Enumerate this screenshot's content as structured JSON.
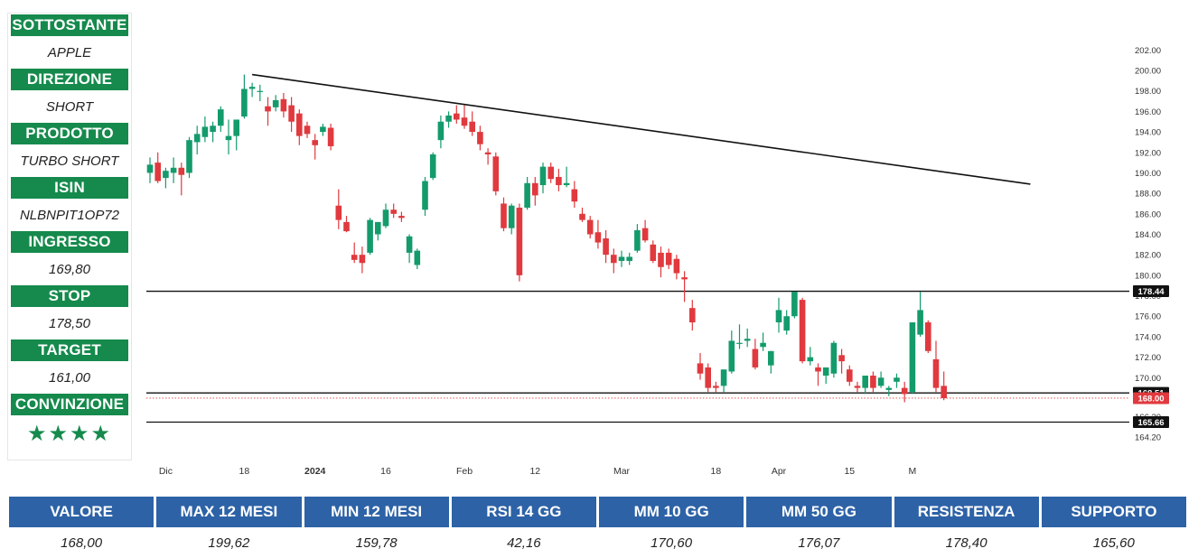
{
  "panel": {
    "rows": [
      {
        "label": "SOTTOSTANTE",
        "value": "APPLE"
      },
      {
        "label": "DIREZIONE",
        "value": "SHORT"
      },
      {
        "label": "PRODOTTO",
        "value": "TURBO SHORT"
      },
      {
        "label": "ISIN",
        "value": "NLBNPIT1OP72"
      },
      {
        "label": "INGRESSO",
        "value": "169,80"
      },
      {
        "label": "STOP",
        "value": "178,50"
      },
      {
        "label": "TARGET",
        "value": "161,00"
      },
      {
        "label": "CONVINZIONE",
        "value": "★★★★"
      }
    ],
    "convinzione_stars": 4
  },
  "stats": {
    "headers": [
      "VALORE",
      "MAX 12 MESI",
      "MIN 12 MESI",
      "RSI 14 GG",
      "MM 10 GG",
      "MM 50 GG",
      "RESISTENZA",
      "SUPPORTO"
    ],
    "values": [
      "168,00",
      "199,62",
      "159,78",
      "42,16",
      "170,60",
      "176,07",
      "178,40",
      "165,60"
    ]
  },
  "colors": {
    "green_header": "#158a4c",
    "blue_header": "#2d62a6",
    "candle_up": "#149b6b",
    "candle_down": "#e0393e"
  },
  "chart_data": {
    "type": "candlestick",
    "ylim": [
      163.5,
      203.0
    ],
    "y_ticks": [
      "164.20",
      "166.20",
      "168.20",
      "170.00",
      "172.00",
      "174.00",
      "176.00",
      "178.00",
      "180.00",
      "182.00",
      "184.00",
      "186.00",
      "188.00",
      "190.00",
      "192.00",
      "194.00",
      "196.00",
      "198.00",
      "200.00",
      "202.00"
    ],
    "y_tick_values": [
      164.2,
      166.2,
      168.2,
      170.0,
      172.0,
      174.0,
      176.0,
      178.0,
      180.0,
      182.0,
      184.0,
      186.0,
      188.0,
      190.0,
      192.0,
      194.0,
      196.0,
      198.0,
      200.0,
      202.0
    ],
    "x_labels": [
      {
        "label": "Dic",
        "index": 2,
        "bold": false
      },
      {
        "label": "18",
        "index": 12,
        "bold": false
      },
      {
        "label": "2024",
        "index": 21,
        "bold": true
      },
      {
        "label": "16",
        "index": 30,
        "bold": false
      },
      {
        "label": "Feb",
        "index": 40,
        "bold": false
      },
      {
        "label": "12",
        "index": 49,
        "bold": false
      },
      {
        "label": "Mar",
        "index": 60,
        "bold": false
      },
      {
        "label": "18",
        "index": 72,
        "bold": false
      },
      {
        "label": "Apr",
        "index": 80,
        "bold": false
      },
      {
        "label": "15",
        "index": 89,
        "bold": false
      },
      {
        "label": "M",
        "index": 97,
        "bold": false
      }
    ],
    "candles": [
      {
        "o": 190.0,
        "h": 191.5,
        "l": 189.0,
        "c": 190.8
      },
      {
        "o": 191.0,
        "h": 192.0,
        "l": 189.0,
        "c": 189.2
      },
      {
        "o": 189.5,
        "h": 190.5,
        "l": 188.5,
        "c": 190.2
      },
      {
        "o": 190.0,
        "h": 191.5,
        "l": 189.0,
        "c": 190.5
      },
      {
        "o": 190.5,
        "h": 191.0,
        "l": 187.8,
        "c": 189.8
      },
      {
        "o": 190.0,
        "h": 193.5,
        "l": 189.5,
        "c": 193.2
      },
      {
        "o": 193.0,
        "h": 194.6,
        "l": 191.8,
        "c": 193.8
      },
      {
        "o": 193.5,
        "h": 195.5,
        "l": 193.0,
        "c": 194.5
      },
      {
        "o": 194.0,
        "h": 195.0,
        "l": 193.0,
        "c": 194.6
      },
      {
        "o": 194.6,
        "h": 196.5,
        "l": 194.0,
        "c": 196.2
      },
      {
        "o": 193.2,
        "h": 195.2,
        "l": 191.8,
        "c": 193.6
      },
      {
        "o": 193.6,
        "h": 195.2,
        "l": 192.2,
        "c": 195.2
      },
      {
        "o": 195.5,
        "h": 199.6,
        "l": 195.3,
        "c": 198.2
      },
      {
        "o": 198.2,
        "h": 198.8,
        "l": 197.4,
        "c": 198.4
      },
      {
        "o": 198.0,
        "h": 198.6,
        "l": 197.0,
        "c": 198.0
      },
      {
        "o": 196.5,
        "h": 197.4,
        "l": 194.6,
        "c": 196.0
      },
      {
        "o": 196.4,
        "h": 197.6,
        "l": 196.0,
        "c": 197.1
      },
      {
        "o": 197.2,
        "h": 197.8,
        "l": 195.4,
        "c": 196.0
      },
      {
        "o": 196.6,
        "h": 197.4,
        "l": 194.0,
        "c": 195.0
      },
      {
        "o": 195.8,
        "h": 196.2,
        "l": 192.7,
        "c": 193.6
      },
      {
        "o": 194.6,
        "h": 195.0,
        "l": 193.4,
        "c": 193.8
      },
      {
        "o": 193.2,
        "h": 193.8,
        "l": 191.3,
        "c": 192.7
      },
      {
        "o": 194.0,
        "h": 194.8,
        "l": 193.6,
        "c": 194.5
      },
      {
        "o": 194.4,
        "h": 194.8,
        "l": 192.2,
        "c": 192.6
      },
      {
        "o": 186.8,
        "h": 188.4,
        "l": 184.5,
        "c": 185.4
      },
      {
        "o": 185.2,
        "h": 185.8,
        "l": 184.2,
        "c": 184.3
      },
      {
        "o": 182.0,
        "h": 183.2,
        "l": 181.2,
        "c": 181.5
      },
      {
        "o": 182.0,
        "h": 182.8,
        "l": 180.2,
        "c": 181.2
      },
      {
        "o": 182.2,
        "h": 185.6,
        "l": 182.0,
        "c": 185.4
      },
      {
        "o": 184.0,
        "h": 185.2,
        "l": 183.4,
        "c": 185.2
      },
      {
        "o": 184.8,
        "h": 187.0,
        "l": 184.6,
        "c": 186.4
      },
      {
        "o": 186.4,
        "h": 187.0,
        "l": 185.6,
        "c": 186.0
      },
      {
        "o": 185.8,
        "h": 186.2,
        "l": 185.2,
        "c": 185.6
      },
      {
        "o": 182.2,
        "h": 184.0,
        "l": 181.2,
        "c": 183.8
      },
      {
        "o": 181.0,
        "h": 182.6,
        "l": 180.6,
        "c": 182.4
      },
      {
        "o": 186.4,
        "h": 189.6,
        "l": 185.8,
        "c": 189.2
      },
      {
        "o": 189.5,
        "h": 192.0,
        "l": 189.3,
        "c": 191.8
      },
      {
        "o": 193.2,
        "h": 195.6,
        "l": 192.4,
        "c": 195.0
      },
      {
        "o": 195.0,
        "h": 196.0,
        "l": 194.4,
        "c": 195.6
      },
      {
        "o": 195.8,
        "h": 196.6,
        "l": 194.8,
        "c": 195.2
      },
      {
        "o": 195.4,
        "h": 196.6,
        "l": 194.3,
        "c": 194.6
      },
      {
        "o": 195.0,
        "h": 196.0,
        "l": 193.6,
        "c": 194.0
      },
      {
        "o": 194.0,
        "h": 194.6,
        "l": 192.2,
        "c": 192.8
      },
      {
        "o": 192.0,
        "h": 192.4,
        "l": 190.8,
        "c": 191.8
      },
      {
        "o": 191.6,
        "h": 192.0,
        "l": 187.8,
        "c": 188.2
      },
      {
        "o": 187.0,
        "h": 187.6,
        "l": 184.3,
        "c": 184.6
      },
      {
        "o": 184.6,
        "h": 187.0,
        "l": 184.0,
        "c": 186.8
      },
      {
        "o": 186.6,
        "h": 187.0,
        "l": 179.4,
        "c": 180.0
      },
      {
        "o": 186.6,
        "h": 189.6,
        "l": 186.4,
        "c": 189.0
      },
      {
        "o": 189.0,
        "h": 189.6,
        "l": 186.8,
        "c": 187.8
      },
      {
        "o": 188.8,
        "h": 191.0,
        "l": 188.0,
        "c": 190.6
      },
      {
        "o": 190.6,
        "h": 191.0,
        "l": 189.0,
        "c": 189.4
      },
      {
        "o": 189.6,
        "h": 190.4,
        "l": 188.2,
        "c": 188.8
      },
      {
        "o": 188.8,
        "h": 190.6,
        "l": 188.6,
        "c": 189.0
      },
      {
        "o": 188.4,
        "h": 189.2,
        "l": 186.6,
        "c": 187.2
      },
      {
        "o": 186.0,
        "h": 186.6,
        "l": 185.2,
        "c": 185.4
      },
      {
        "o": 185.4,
        "h": 185.8,
        "l": 183.6,
        "c": 184.0
      },
      {
        "o": 184.2,
        "h": 185.4,
        "l": 182.6,
        "c": 183.2
      },
      {
        "o": 183.6,
        "h": 184.4,
        "l": 181.2,
        "c": 182.0
      },
      {
        "o": 182.0,
        "h": 182.6,
        "l": 180.2,
        "c": 181.2
      },
      {
        "o": 181.4,
        "h": 182.4,
        "l": 180.8,
        "c": 181.8
      },
      {
        "o": 181.4,
        "h": 182.2,
        "l": 181.0,
        "c": 181.8
      },
      {
        "o": 182.4,
        "h": 185.0,
        "l": 182.2,
        "c": 184.4
      },
      {
        "o": 184.6,
        "h": 185.4,
        "l": 183.2,
        "c": 183.4
      },
      {
        "o": 183.0,
        "h": 183.4,
        "l": 181.2,
        "c": 181.4
      },
      {
        "o": 182.2,
        "h": 182.8,
        "l": 179.8,
        "c": 180.8
      },
      {
        "o": 182.2,
        "h": 182.6,
        "l": 180.6,
        "c": 181.0
      },
      {
        "o": 181.6,
        "h": 182.0,
        "l": 179.6,
        "c": 180.2
      },
      {
        "o": 179.8,
        "h": 180.4,
        "l": 177.4,
        "c": 179.6
      },
      {
        "o": 176.8,
        "h": 177.6,
        "l": 174.6,
        "c": 175.4
      },
      {
        "o": 171.4,
        "h": 172.4,
        "l": 169.8,
        "c": 170.4
      },
      {
        "o": 171.0,
        "h": 171.4,
        "l": 168.6,
        "c": 169.0
      },
      {
        "o": 169.2,
        "h": 169.6,
        "l": 168.6,
        "c": 169.0
      },
      {
        "o": 169.2,
        "h": 170.8,
        "l": 168.6,
        "c": 170.8
      },
      {
        "o": 170.6,
        "h": 174.6,
        "l": 170.4,
        "c": 173.6
      },
      {
        "o": 173.4,
        "h": 175.2,
        "l": 172.8,
        "c": 173.4
      },
      {
        "o": 173.6,
        "h": 174.8,
        "l": 173.0,
        "c": 173.8
      },
      {
        "o": 172.8,
        "h": 173.8,
        "l": 170.8,
        "c": 171.0
      },
      {
        "o": 173.0,
        "h": 174.4,
        "l": 172.6,
        "c": 173.4
      },
      {
        "o": 171.2,
        "h": 172.6,
        "l": 170.4,
        "c": 172.6
      },
      {
        "o": 175.4,
        "h": 177.8,
        "l": 174.4,
        "c": 176.6
      },
      {
        "o": 174.6,
        "h": 176.6,
        "l": 174.2,
        "c": 176.0
      },
      {
        "o": 176.0,
        "h": 178.4,
        "l": 175.8,
        "c": 178.4
      },
      {
        "o": 177.6,
        "h": 177.8,
        "l": 171.4,
        "c": 171.6
      },
      {
        "o": 171.6,
        "h": 173.0,
        "l": 171.2,
        "c": 172.0
      },
      {
        "o": 171.0,
        "h": 171.4,
        "l": 169.2,
        "c": 170.6
      },
      {
        "o": 170.2,
        "h": 171.0,
        "l": 169.4,
        "c": 171.0
      },
      {
        "o": 170.4,
        "h": 173.6,
        "l": 170.0,
        "c": 173.4
      },
      {
        "o": 172.2,
        "h": 172.8,
        "l": 170.4,
        "c": 171.6
      },
      {
        "o": 170.8,
        "h": 171.2,
        "l": 169.2,
        "c": 169.6
      },
      {
        "o": 169.2,
        "h": 169.6,
        "l": 168.6,
        "c": 169.0
      },
      {
        "o": 169.0,
        "h": 170.2,
        "l": 168.4,
        "c": 170.2
      },
      {
        "o": 170.2,
        "h": 170.6,
        "l": 168.6,
        "c": 169.0
      },
      {
        "o": 169.2,
        "h": 170.6,
        "l": 169.0,
        "c": 170.0
      },
      {
        "o": 168.8,
        "h": 169.2,
        "l": 168.2,
        "c": 169.0
      },
      {
        "o": 169.6,
        "h": 170.4,
        "l": 169.0,
        "c": 170.0
      },
      {
        "o": 169.0,
        "h": 169.6,
        "l": 167.6,
        "c": 168.4
      },
      {
        "o": 168.6,
        "h": 175.4,
        "l": 168.4,
        "c": 175.4
      },
      {
        "o": 174.2,
        "h": 178.4,
        "l": 174.0,
        "c": 176.6
      },
      {
        "o": 175.4,
        "h": 175.6,
        "l": 172.4,
        "c": 172.6
      },
      {
        "o": 171.8,
        "h": 173.6,
        "l": 168.6,
        "c": 169.0
      },
      {
        "o": 169.2,
        "h": 170.6,
        "l": 167.8,
        "c": 168.0
      }
    ],
    "trendline": {
      "from": {
        "index": 13,
        "value": 199.6
      },
      "to": {
        "index": 112,
        "value": 188.9
      }
    },
    "levels": [
      {
        "value": 178.44,
        "label": "178.44",
        "style": "solid"
      },
      {
        "value": 168.51,
        "label": "168.51",
        "style": "solid"
      },
      {
        "value": 168.0,
        "label": "168.00",
        "style": "dotted-red"
      },
      {
        "value": 165.66,
        "label": "165.66",
        "style": "solid"
      }
    ]
  }
}
